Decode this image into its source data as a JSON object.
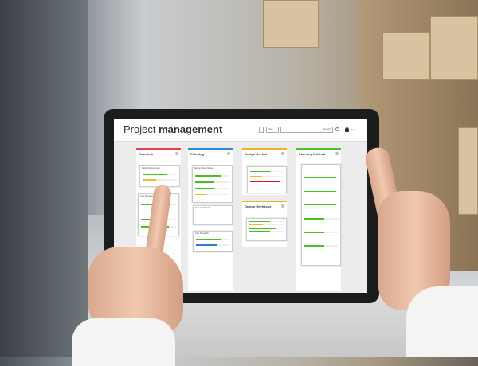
{
  "app": {
    "title_light": "Project",
    "title_bold": "management",
    "filter_label": "Filter",
    "search_placeholder": "Search",
    "user_label": "User"
  },
  "colors": {
    "research": "#e84050",
    "planning": "#2a8ae0",
    "review": "#f5b020",
    "finished": "#4cc430",
    "green": "#44c21e",
    "yellow": "#f8b81a",
    "red": "#e8141c",
    "blue": "#2a7ad8"
  },
  "columns": [
    {
      "name": "Research",
      "color": "#e84050",
      "cards": [
        {
          "title": "Design Requirement",
          "bars": [
            {
              "v": 0.7,
              "c": "#44c21e"
            },
            {
              "v": 0.4,
              "c": "#f8b81a"
            }
          ]
        },
        {
          "title": "User Research",
          "bars": [
            {
              "v": 0.8,
              "c": "#44c21e"
            },
            {
              "v": 0.6,
              "c": "#f8b81a"
            },
            {
              "v": 0.7,
              "c": "#44c21e"
            },
            {
              "v": 0.8,
              "c": "#44c21e"
            }
          ]
        }
      ]
    },
    {
      "name": "Planning",
      "color": "#2a8ae0",
      "cards": [
        {
          "title": "Define Project Scope",
          "bars": [
            {
              "v": 0.75,
              "c": "#44c21e"
            },
            {
              "v": 0.55,
              "c": "#44c21e"
            },
            {
              "v": 0.55,
              "c": "#44c21e"
            },
            {
              "v": 0.35,
              "c": "#f8b81a"
            }
          ]
        },
        {
          "title": "Research Review",
          "bars": [
            {
              "v": 0.9,
              "c": "#e8141c"
            }
          ]
        },
        {
          "title": "User Research",
          "bars": [
            {
              "v": 0.75,
              "c": "#44c21e"
            },
            {
              "v": 0.65,
              "c": "#2a7ad8"
            }
          ]
        }
      ]
    },
    {
      "name": "Design Review",
      "color": "#f5b020",
      "cards": [
        {
          "title": "",
          "bars": [
            {
              "v": 0.6,
              "c": "#44c21e"
            },
            {
              "v": 0.35,
              "c": "#f8b81a"
            },
            {
              "v": 0.9,
              "c": "#e8141c"
            }
          ]
        }
      ]
    },
    {
      "name": "Planning finished",
      "color": "#4cc430",
      "cards": [
        {
          "title": "",
          "bars": [
            {
              "v": 0.95,
              "c": "#44c21e"
            },
            {
              "v": 0.95,
              "c": "#44c21e"
            },
            {
              "v": 0.95,
              "c": "#44c21e"
            },
            {
              "v": 0.6,
              "c": "#44c21e"
            },
            {
              "v": 0.6,
              "c": "#44c21e"
            },
            {
              "v": 0.6,
              "c": "#44c21e"
            }
          ]
        }
      ]
    }
  ],
  "design_revisions": {
    "name": "Design Revisions",
    "color": "#f5b020",
    "bars": [
      {
        "v": 0.6,
        "c": "#44c21e"
      },
      {
        "v": 0.4,
        "c": "#f8b81a"
      },
      {
        "v": 0.8,
        "c": "#44c21e"
      },
      {
        "v": 0.6,
        "c": "#44c21e"
      }
    ]
  }
}
